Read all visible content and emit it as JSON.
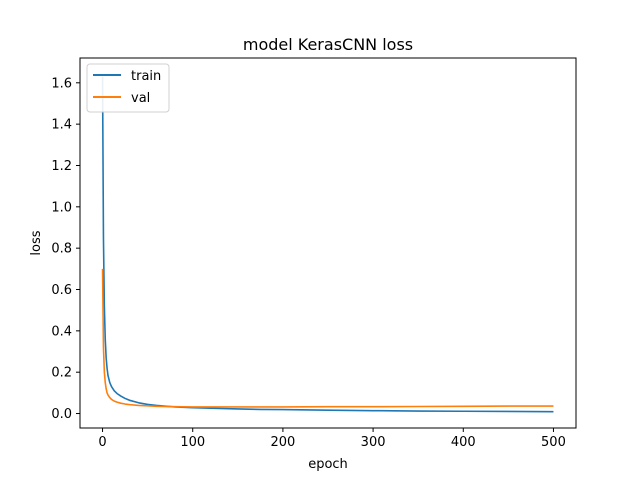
{
  "chart_data": {
    "type": "line",
    "title": "model KerasCNN loss",
    "xlabel": "epoch",
    "ylabel": "loss",
    "xlim": [
      -25,
      525
    ],
    "ylim": [
      -0.07,
      1.72
    ],
    "xticks": [
      0,
      100,
      200,
      300,
      400,
      500
    ],
    "yticks": [
      0.0,
      0.2,
      0.4,
      0.6,
      0.8,
      1.0,
      1.2,
      1.4,
      1.6
    ],
    "grid": false,
    "legend_position": "top-left",
    "series": [
      {
        "name": "train",
        "color": "#1f77b4",
        "x": [
          0,
          1,
          2,
          3,
          4,
          5,
          6,
          8,
          10,
          13,
          16,
          20,
          25,
          30,
          40,
          50,
          60,
          80,
          100,
          125,
          150,
          175,
          200,
          250,
          300,
          350,
          400,
          450,
          500
        ],
        "y": [
          1.63,
          0.85,
          0.52,
          0.36,
          0.27,
          0.22,
          0.185,
          0.15,
          0.13,
          0.11,
          0.097,
          0.085,
          0.073,
          0.064,
          0.052,
          0.044,
          0.039,
          0.032,
          0.028,
          0.025,
          0.022,
          0.02,
          0.019,
          0.016,
          0.014,
          0.012,
          0.011,
          0.01,
          0.009
        ]
      },
      {
        "name": "val",
        "color": "#ff7f0e",
        "x": [
          0,
          1,
          2,
          3,
          4,
          5,
          6,
          8,
          10,
          13,
          16,
          20,
          25,
          30,
          40,
          50,
          60,
          80,
          100,
          125,
          150,
          175,
          200,
          250,
          300,
          350,
          400,
          450,
          500
        ],
        "y": [
          0.7,
          0.32,
          0.2,
          0.15,
          0.12,
          0.1,
          0.09,
          0.077,
          0.068,
          0.06,
          0.055,
          0.05,
          0.046,
          0.043,
          0.039,
          0.037,
          0.035,
          0.033,
          0.032,
          0.032,
          0.032,
          0.032,
          0.032,
          0.033,
          0.033,
          0.034,
          0.035,
          0.036,
          0.036
        ]
      }
    ]
  }
}
